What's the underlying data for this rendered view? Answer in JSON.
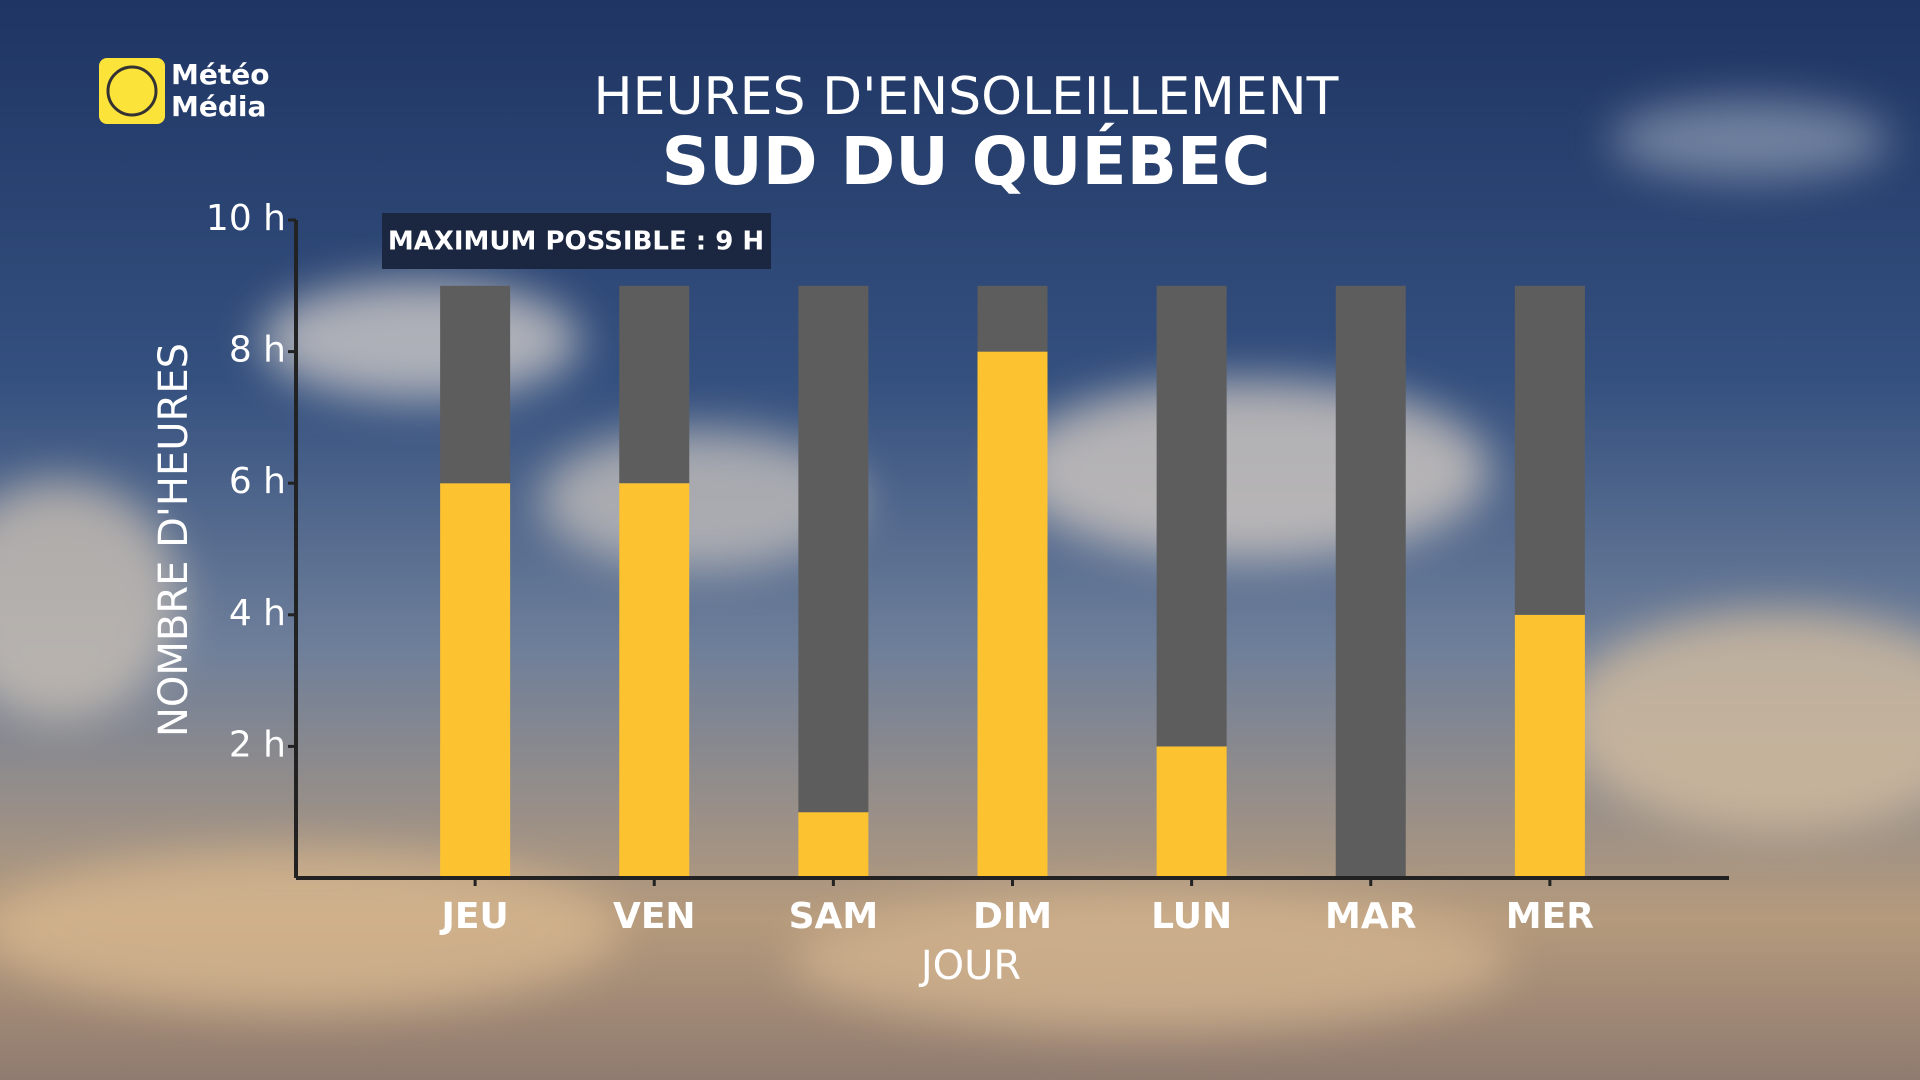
{
  "brand": {
    "line1": "Météo",
    "line2": "Média"
  },
  "chart_data": {
    "type": "stacked_bar",
    "title": "HEURES D'ENSOLEILLEMENT",
    "subtitle": "SUD DU QUÉBEC",
    "annotation": "MAXIMUM POSSIBLE : 9 H",
    "x_label": "JOUR",
    "y_label": "NOMBRE D'HEURES",
    "categories": [
      "JEU",
      "VEN",
      "SAM",
      "DIM",
      "LUN",
      "MAR",
      "MER"
    ],
    "series": [
      {
        "color": "#fcc22f",
        "values": [
          6,
          6,
          1,
          8,
          2,
          0,
          4
        ]
      },
      {
        "color": "#5d5d5d",
        "values": [
          3,
          3,
          8,
          1,
          7,
          9,
          5
        ]
      }
    ],
    "ylim": [
      0,
      10
    ],
    "yticks": [
      {
        "value": 2,
        "label": "2 h"
      },
      {
        "value": 4,
        "label": "4 h"
      },
      {
        "value": 6,
        "label": "6 h"
      },
      {
        "value": 8,
        "label": "8 h"
      },
      {
        "value": 10,
        "label": "10 h"
      }
    ]
  }
}
